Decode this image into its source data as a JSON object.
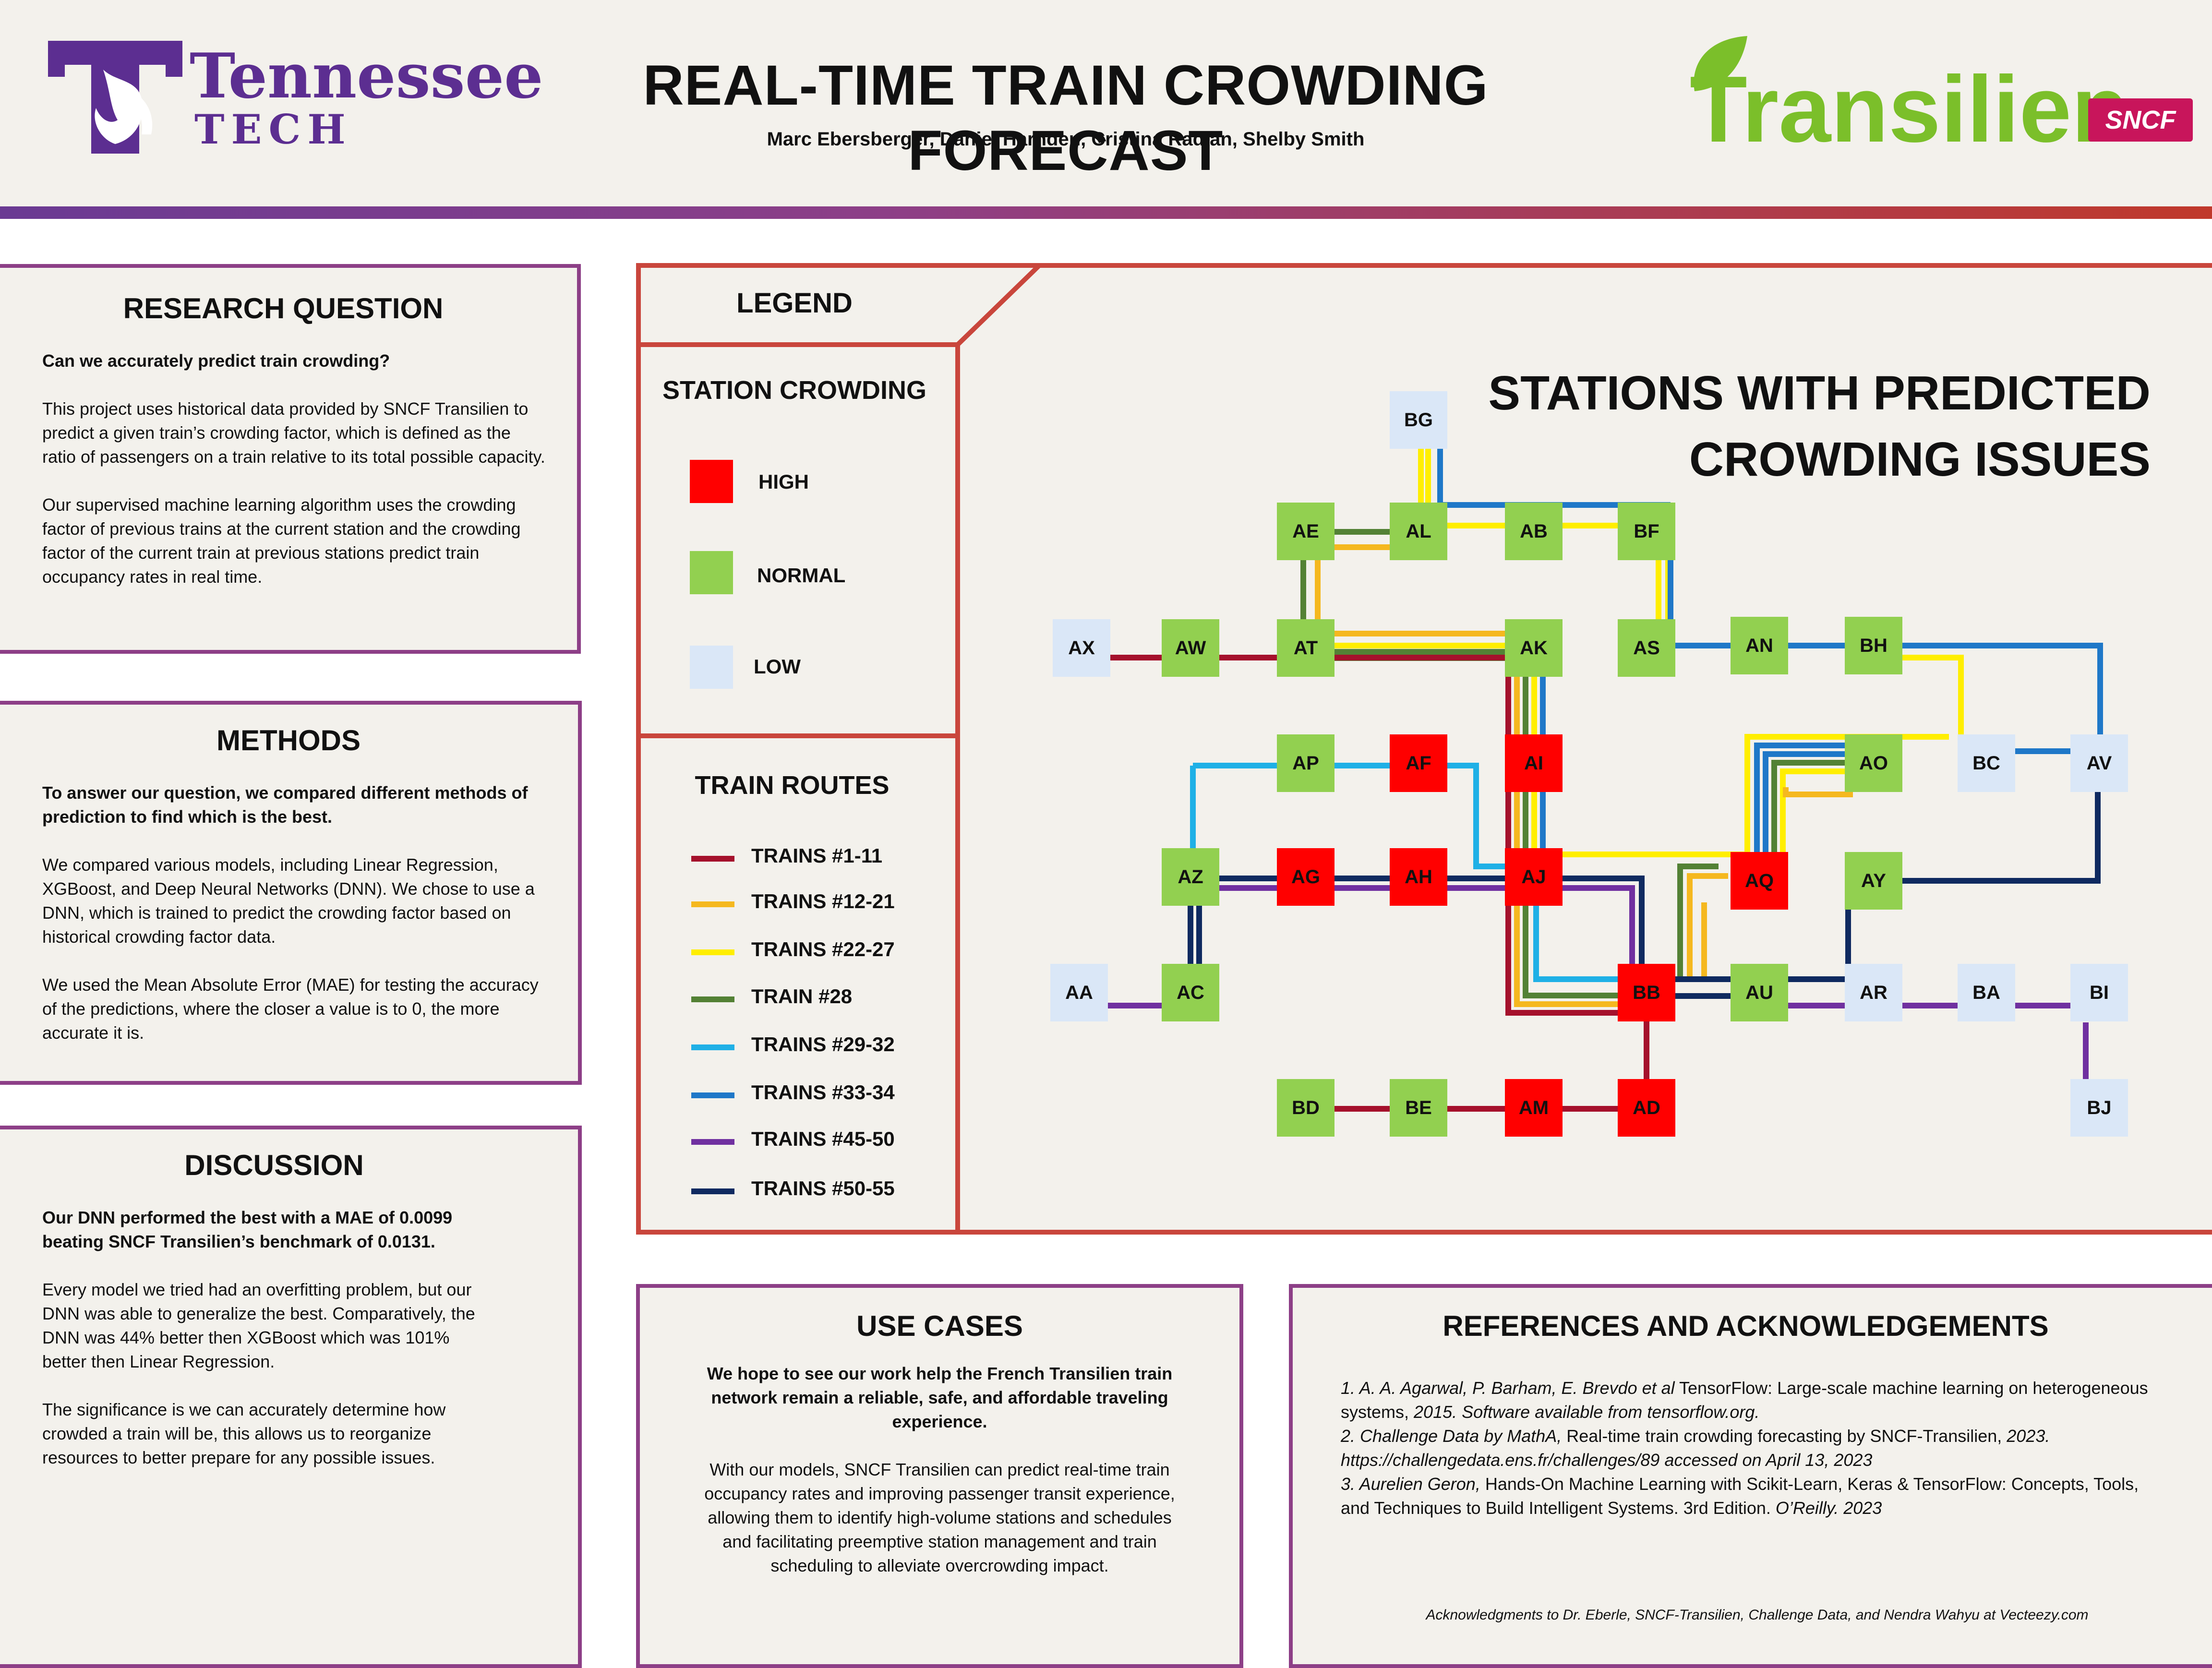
{
  "header": {
    "title": "REAL-TIME TRAIN CROWDING FORECAST",
    "authors": "Marc Ebersberger, Daniel Harnden, Cristina Radian, Shelby Smith",
    "left_logo": {
      "name": "Tennessee",
      "sub": "TECH"
    },
    "right_logo": {
      "name": "Transilien",
      "badge": "SNCF"
    }
  },
  "research_question": {
    "heading": "RESEARCH QUESTION",
    "question": "Can we accurately predict train crowding?",
    "p1": "This project uses historical data provided by SNCF Transilien to predict a given train’s crowding factor, which is defined as the ratio of passengers on a train relative to its total possible capacity.",
    "p2": "Our supervised machine learning algorithm uses the crowding factor of previous trains at the current station and the crowding factor of the current train at previous stations predict train occupancy rates in real time."
  },
  "methods": {
    "heading": "METHODS",
    "lead": "To answer our question, we compared different methods of prediction to find which is the best.",
    "p1": "We compared various models, including Linear Regression, XGBoost, and Deep Neural Networks (DNN). We chose to use a DNN, which is trained to predict the crowding factor based on historical crowding factor data.",
    "p2": "We used the Mean Absolute Error (MAE) for testing the accuracy of the predictions, where the closer a value is to 0, the more accurate it is."
  },
  "discussion": {
    "heading": "DISCUSSION",
    "lead": "Our DNN performed the best with a MAE of 0.0099 beating SNCF Transilien’s benchmark of 0.0131.",
    "p1": "Every model we tried had an overfitting problem, but our DNN was able to generalize the best. Comparatively, the DNN was 44% better then XGBoost which was 101% better then Linear Regression.",
    "p2": "The significance is we can accurately determine how crowded a train will be, this allows us to reorganize resources to better prepare for any possible issues."
  },
  "legend": {
    "heading": "LEGEND",
    "crowding_heading": "STATION CROWDING",
    "crowding": [
      {
        "label": "HIGH",
        "color": "#ff0000"
      },
      {
        "label": "NORMAL",
        "color": "#92d050"
      },
      {
        "label": "LOW",
        "color": "#dae7f7"
      }
    ],
    "routes_heading": "TRAIN ROUTES",
    "routes": [
      {
        "label": "TRAINS #1-11",
        "color": "#a5112c"
      },
      {
        "label": "TRAINS #12-21",
        "color": "#f5b81f"
      },
      {
        "label": "TRAINS #22-27",
        "color": "#ffee00"
      },
      {
        "label": "TRAIN #28",
        "color": "#538135"
      },
      {
        "label": "TRAINS #29-32",
        "color": "#1fb0e6"
      },
      {
        "label": "TRAINS #33-34",
        "color": "#1f78c8"
      },
      {
        "label": "TRAINS #45-50",
        "color": "#7030a0"
      },
      {
        "label": "TRAINS #50-55",
        "color": "#0f2a60"
      }
    ]
  },
  "map": {
    "title_line1": "STATIONS WITH PREDICTED",
    "title_line2": "CROWDING ISSUES",
    "stations": [
      {
        "id": "BG",
        "level": "low"
      },
      {
        "id": "AE",
        "level": "normal"
      },
      {
        "id": "AL",
        "level": "normal"
      },
      {
        "id": "AB",
        "level": "normal"
      },
      {
        "id": "BF",
        "level": "normal"
      },
      {
        "id": "AX",
        "level": "low"
      },
      {
        "id": "AW",
        "level": "normal"
      },
      {
        "id": "AT",
        "level": "normal"
      },
      {
        "id": "AK",
        "level": "normal"
      },
      {
        "id": "AS",
        "level": "normal"
      },
      {
        "id": "AN",
        "level": "normal"
      },
      {
        "id": "BH",
        "level": "normal"
      },
      {
        "id": "AP",
        "level": "normal"
      },
      {
        "id": "AF",
        "level": "high"
      },
      {
        "id": "AI",
        "level": "high"
      },
      {
        "id": "AO",
        "level": "normal"
      },
      {
        "id": "BC",
        "level": "low"
      },
      {
        "id": "AV",
        "level": "low"
      },
      {
        "id": "AZ",
        "level": "normal"
      },
      {
        "id": "AG",
        "level": "high"
      },
      {
        "id": "AH",
        "level": "high"
      },
      {
        "id": "AJ",
        "level": "high"
      },
      {
        "id": "AQ",
        "level": "high"
      },
      {
        "id": "AY",
        "level": "normal"
      },
      {
        "id": "AA",
        "level": "low"
      },
      {
        "id": "AC",
        "level": "normal"
      },
      {
        "id": "BB",
        "level": "high"
      },
      {
        "id": "AU",
        "level": "normal"
      },
      {
        "id": "AR",
        "level": "low"
      },
      {
        "id": "BA",
        "level": "low"
      },
      {
        "id": "BI",
        "level": "low"
      },
      {
        "id": "BD",
        "level": "normal"
      },
      {
        "id": "BE",
        "level": "normal"
      },
      {
        "id": "AM",
        "level": "high"
      },
      {
        "id": "AD",
        "level": "high"
      },
      {
        "id": "BJ",
        "level": "low"
      }
    ]
  },
  "use_cases": {
    "heading": "USE CASES",
    "lead": "We hope to see our work help the French Transilien train network remain a reliable, safe, and affordable traveling experience.",
    "p1": "With our models, SNCF Transilien can predict real-time train occupancy rates and improving passenger transit experience, allowing them to identify high-volume stations and schedules and facilitating preemptive station management and train scheduling to alleviate overcrowding impact."
  },
  "references": {
    "heading": "REFERENCES AND ACKNOWLEDGEMENTS",
    "r1_authors": "1. A. A. Agarwal, P. Barham, E. Brevdo et al",
    "r1_title": "TensorFlow: Large-scale machine learning on heterogeneous systems,",
    "r1_rest": "2015. Software available from tensorflow.org.",
    "r2_authors": "2. Challenge Data by MathA,",
    "r2_title": "Real-time train crowding forecasting by SNCF-Transilien,",
    "r2_rest": "2023. https://challengedata.ens.fr/challenges/89 accessed on April 13, 2023",
    "r3_authors": "3. Aurelien Geron,",
    "r3_title": "Hands-On Machine Learning with Scikit-Learn, Keras & TensorFlow: Concepts, Tools, and Techniques to Build Intelligent Systems. 3rd Edition.",
    "r3_rest": "O’Reilly. 2023",
    "ack": "Acknowledgments to Dr. Eberle, SNCF-Transilien, Challenge Data, and Nendra Wahyu at Vecteezy.com"
  }
}
